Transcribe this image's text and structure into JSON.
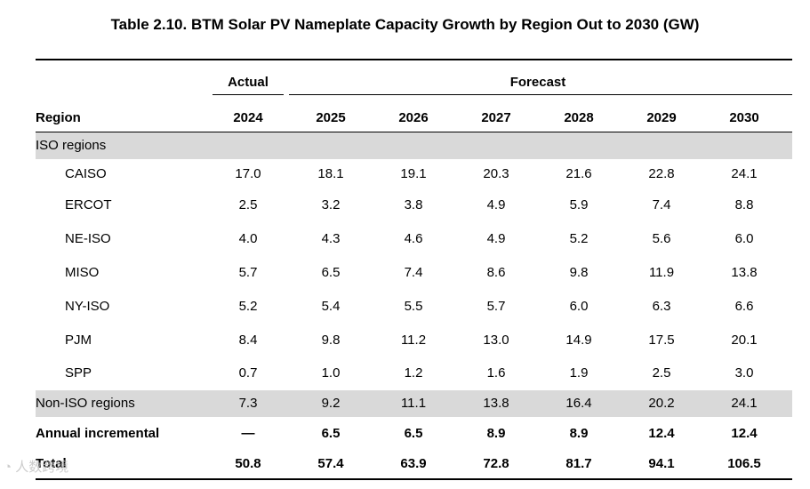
{
  "title": "Table 2.10. BTM Solar PV Nameplate Capacity Growth by Region Out to 2030 (GW)",
  "groups": {
    "actual": "Actual",
    "forecast": "Forecast"
  },
  "header": {
    "region": "Region",
    "years": [
      "2024",
      "2025",
      "2026",
      "2027",
      "2028",
      "2029",
      "2030"
    ]
  },
  "rows": [
    {
      "label": "ISO regions",
      "values": [
        "",
        "",
        "",
        "",
        "",
        "",
        ""
      ]
    },
    {
      "label": "CAISO",
      "values": [
        "17.0",
        "18.1",
        "19.1",
        "20.3",
        "21.6",
        "22.8",
        "24.1"
      ]
    },
    {
      "label": "ERCOT",
      "values": [
        "2.5",
        "3.2",
        "3.8",
        "4.9",
        "5.9",
        "7.4",
        "8.8"
      ]
    },
    {
      "label": "NE-ISO",
      "values": [
        "4.0",
        "4.3",
        "4.6",
        "4.9",
        "5.2",
        "5.6",
        "6.0"
      ]
    },
    {
      "label": "MISO",
      "values": [
        "5.7",
        "6.5",
        "7.4",
        "8.6",
        "9.8",
        "11.9",
        "13.8"
      ]
    },
    {
      "label": "NY-ISO",
      "values": [
        "5.2",
        "5.4",
        "5.5",
        "5.7",
        "6.0",
        "6.3",
        "6.6"
      ]
    },
    {
      "label": "PJM",
      "values": [
        "8.4",
        "9.8",
        "11.2",
        "13.0",
        "14.9",
        "17.5",
        "20.1"
      ]
    },
    {
      "label": "SPP",
      "values": [
        "0.7",
        "1.0",
        "1.2",
        "1.6",
        "1.9",
        "2.5",
        "3.0"
      ]
    },
    {
      "label": "Non-ISO regions",
      "values": [
        "7.3",
        "9.2",
        "11.1",
        "13.8",
        "16.4",
        "20.2",
        "24.1"
      ]
    },
    {
      "label": "Annual incremental",
      "values": [
        "—",
        "6.5",
        "6.5",
        "8.9",
        "8.9",
        "12.4",
        "12.4"
      ]
    },
    {
      "label": "Total",
      "values": [
        "50.8",
        "57.4",
        "63.9",
        "72.8",
        "81.7",
        "94.1",
        "106.5"
      ]
    }
  ],
  "watermark": "人数跨境"
}
